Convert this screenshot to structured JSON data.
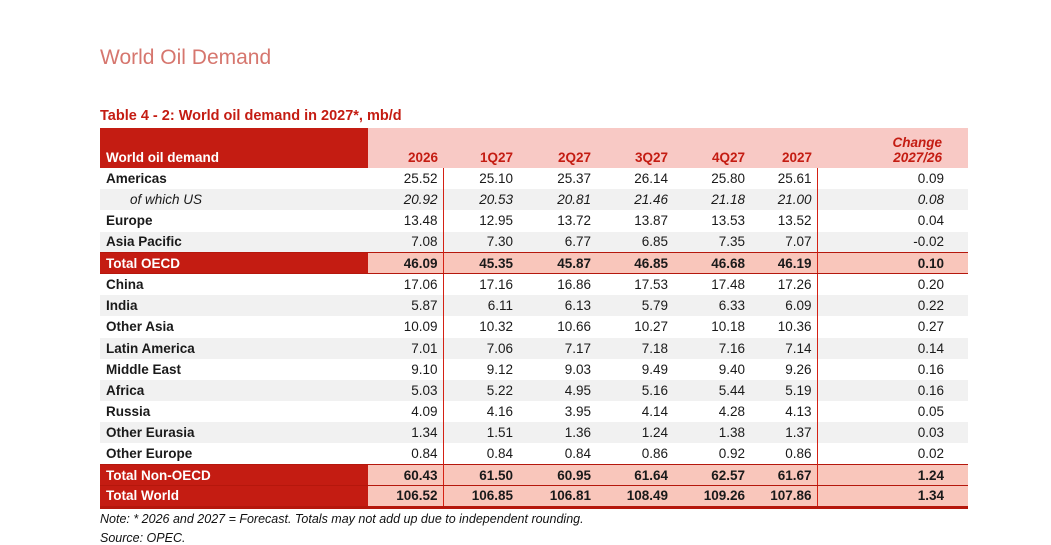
{
  "page": {
    "title": "World Oil Demand",
    "note": "Note: * 2026 and 2027 = Forecast. Totals may not add up due to independent rounding.",
    "source": "Source: OPEC."
  },
  "colors": {
    "dark_red": "#c41c12",
    "header_pink": "#f8c9c5",
    "total_pink": "#f9c6bb",
    "stripe_gray": "#f1f1f1",
    "title_salmon": "#d6766e",
    "divider_red": "#d42114"
  },
  "table": {
    "title": "Table 4 - 2: World oil demand in 2027*, mb/d",
    "header_label": "World oil demand",
    "columns": [
      "2026",
      "1Q27",
      "2Q27",
      "3Q27",
      "4Q27",
      "2027"
    ],
    "change_header": {
      "line1": "Change",
      "line2": "2027/26"
    },
    "rows": [
      {
        "label": "Americas",
        "style": "plain",
        "italic": false,
        "values": [
          "25.52",
          "25.10",
          "25.37",
          "26.14",
          "25.80",
          "25.61",
          "0.09"
        ]
      },
      {
        "label": "of which US",
        "style": "stripe",
        "italic": true,
        "values": [
          "20.92",
          "20.53",
          "20.81",
          "21.46",
          "21.18",
          "21.00",
          "0.08"
        ]
      },
      {
        "label": "Europe",
        "style": "plain",
        "italic": false,
        "values": [
          "13.48",
          "12.95",
          "13.72",
          "13.87",
          "13.53",
          "13.52",
          "0.04"
        ]
      },
      {
        "label": "Asia Pacific",
        "style": "stripe",
        "italic": false,
        "values": [
          "7.08",
          "7.30",
          "6.77",
          "6.85",
          "7.35",
          "7.07",
          "-0.02"
        ]
      },
      {
        "label": "Total OECD",
        "style": "total",
        "italic": false,
        "values": [
          "46.09",
          "45.35",
          "45.87",
          "46.85",
          "46.68",
          "46.19",
          "0.10"
        ]
      },
      {
        "label": "China",
        "style": "plain",
        "italic": false,
        "values": [
          "17.06",
          "17.16",
          "16.86",
          "17.53",
          "17.48",
          "17.26",
          "0.20"
        ]
      },
      {
        "label": "India",
        "style": "stripe",
        "italic": false,
        "values": [
          "5.87",
          "6.11",
          "6.13",
          "5.79",
          "6.33",
          "6.09",
          "0.22"
        ]
      },
      {
        "label": "Other Asia",
        "style": "plain",
        "italic": false,
        "values": [
          "10.09",
          "10.32",
          "10.66",
          "10.27",
          "10.18",
          "10.36",
          "0.27"
        ]
      },
      {
        "label": "Latin America",
        "style": "stripe",
        "italic": false,
        "values": [
          "7.01",
          "7.06",
          "7.17",
          "7.18",
          "7.16",
          "7.14",
          "0.14"
        ]
      },
      {
        "label": "Middle East",
        "style": "plain",
        "italic": false,
        "values": [
          "9.10",
          "9.12",
          "9.03",
          "9.49",
          "9.40",
          "9.26",
          "0.16"
        ]
      },
      {
        "label": "Africa",
        "style": "stripe",
        "italic": false,
        "values": [
          "5.03",
          "5.22",
          "4.95",
          "5.16",
          "5.44",
          "5.19",
          "0.16"
        ]
      },
      {
        "label": "Russia",
        "style": "plain",
        "italic": false,
        "values": [
          "4.09",
          "4.16",
          "3.95",
          "4.14",
          "4.28",
          "4.13",
          "0.05"
        ]
      },
      {
        "label": "Other Eurasia",
        "style": "stripe",
        "italic": false,
        "values": [
          "1.34",
          "1.51",
          "1.36",
          "1.24",
          "1.38",
          "1.37",
          "0.03"
        ]
      },
      {
        "label": "Other Europe",
        "style": "plain",
        "italic": false,
        "values": [
          "0.84",
          "0.84",
          "0.84",
          "0.86",
          "0.92",
          "0.86",
          "0.02"
        ]
      },
      {
        "label": "Total Non-OECD",
        "style": "total",
        "italic": false,
        "values": [
          "60.43",
          "61.50",
          "60.95",
          "61.64",
          "62.57",
          "61.67",
          "1.24"
        ]
      },
      {
        "label": "Total World",
        "style": "total",
        "italic": false,
        "values": [
          "106.52",
          "106.85",
          "106.81",
          "108.49",
          "109.26",
          "107.86",
          "1.34"
        ]
      }
    ]
  }
}
